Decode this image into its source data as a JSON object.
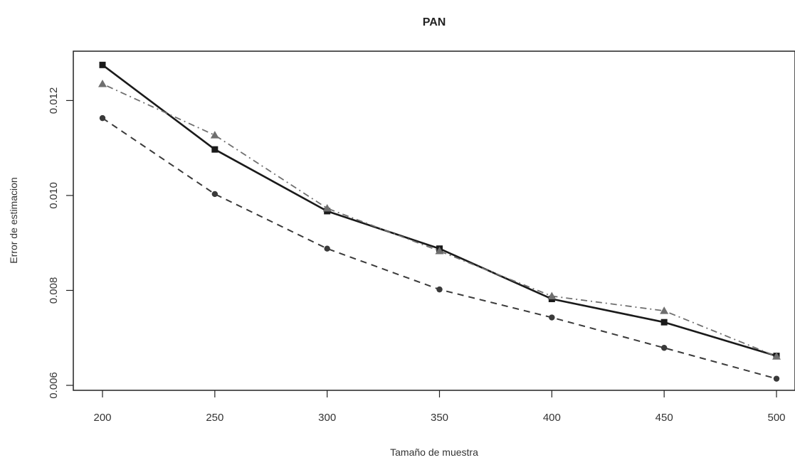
{
  "chart_data": {
    "type": "line",
    "title": "PAN",
    "xlabel": "Tamaño de muestra",
    "ylabel": "Error de estimacion",
    "x": [
      200,
      250,
      300,
      350,
      400,
      450,
      500
    ],
    "x_ticks": [
      "200",
      "250",
      "300",
      "350",
      "400",
      "450",
      "500"
    ],
    "y_ticks": [
      "0.006",
      "0.008",
      "0.010",
      "0.012"
    ],
    "xlim": [
      200,
      500
    ],
    "ylim": [
      0.006,
      0.0128
    ],
    "grid": false,
    "series": [
      {
        "style": "solid",
        "marker": "square",
        "color": "#1a1a1a",
        "values": [
          0.01275,
          0.01097,
          0.00967,
          0.00888,
          0.00782,
          0.00733,
          0.00662
        ]
      },
      {
        "style": "dashdot",
        "marker": "triangle",
        "color": "#6f6f6f",
        "values": [
          0.01235,
          0.01127,
          0.00973,
          0.00883,
          0.00788,
          0.00757,
          0.00661
        ]
      },
      {
        "style": "dashed",
        "marker": "circle",
        "color": "#3a3a3a",
        "values": [
          0.01163,
          0.01003,
          0.00888,
          0.00802,
          0.00743,
          0.00679,
          0.00614
        ]
      }
    ]
  }
}
